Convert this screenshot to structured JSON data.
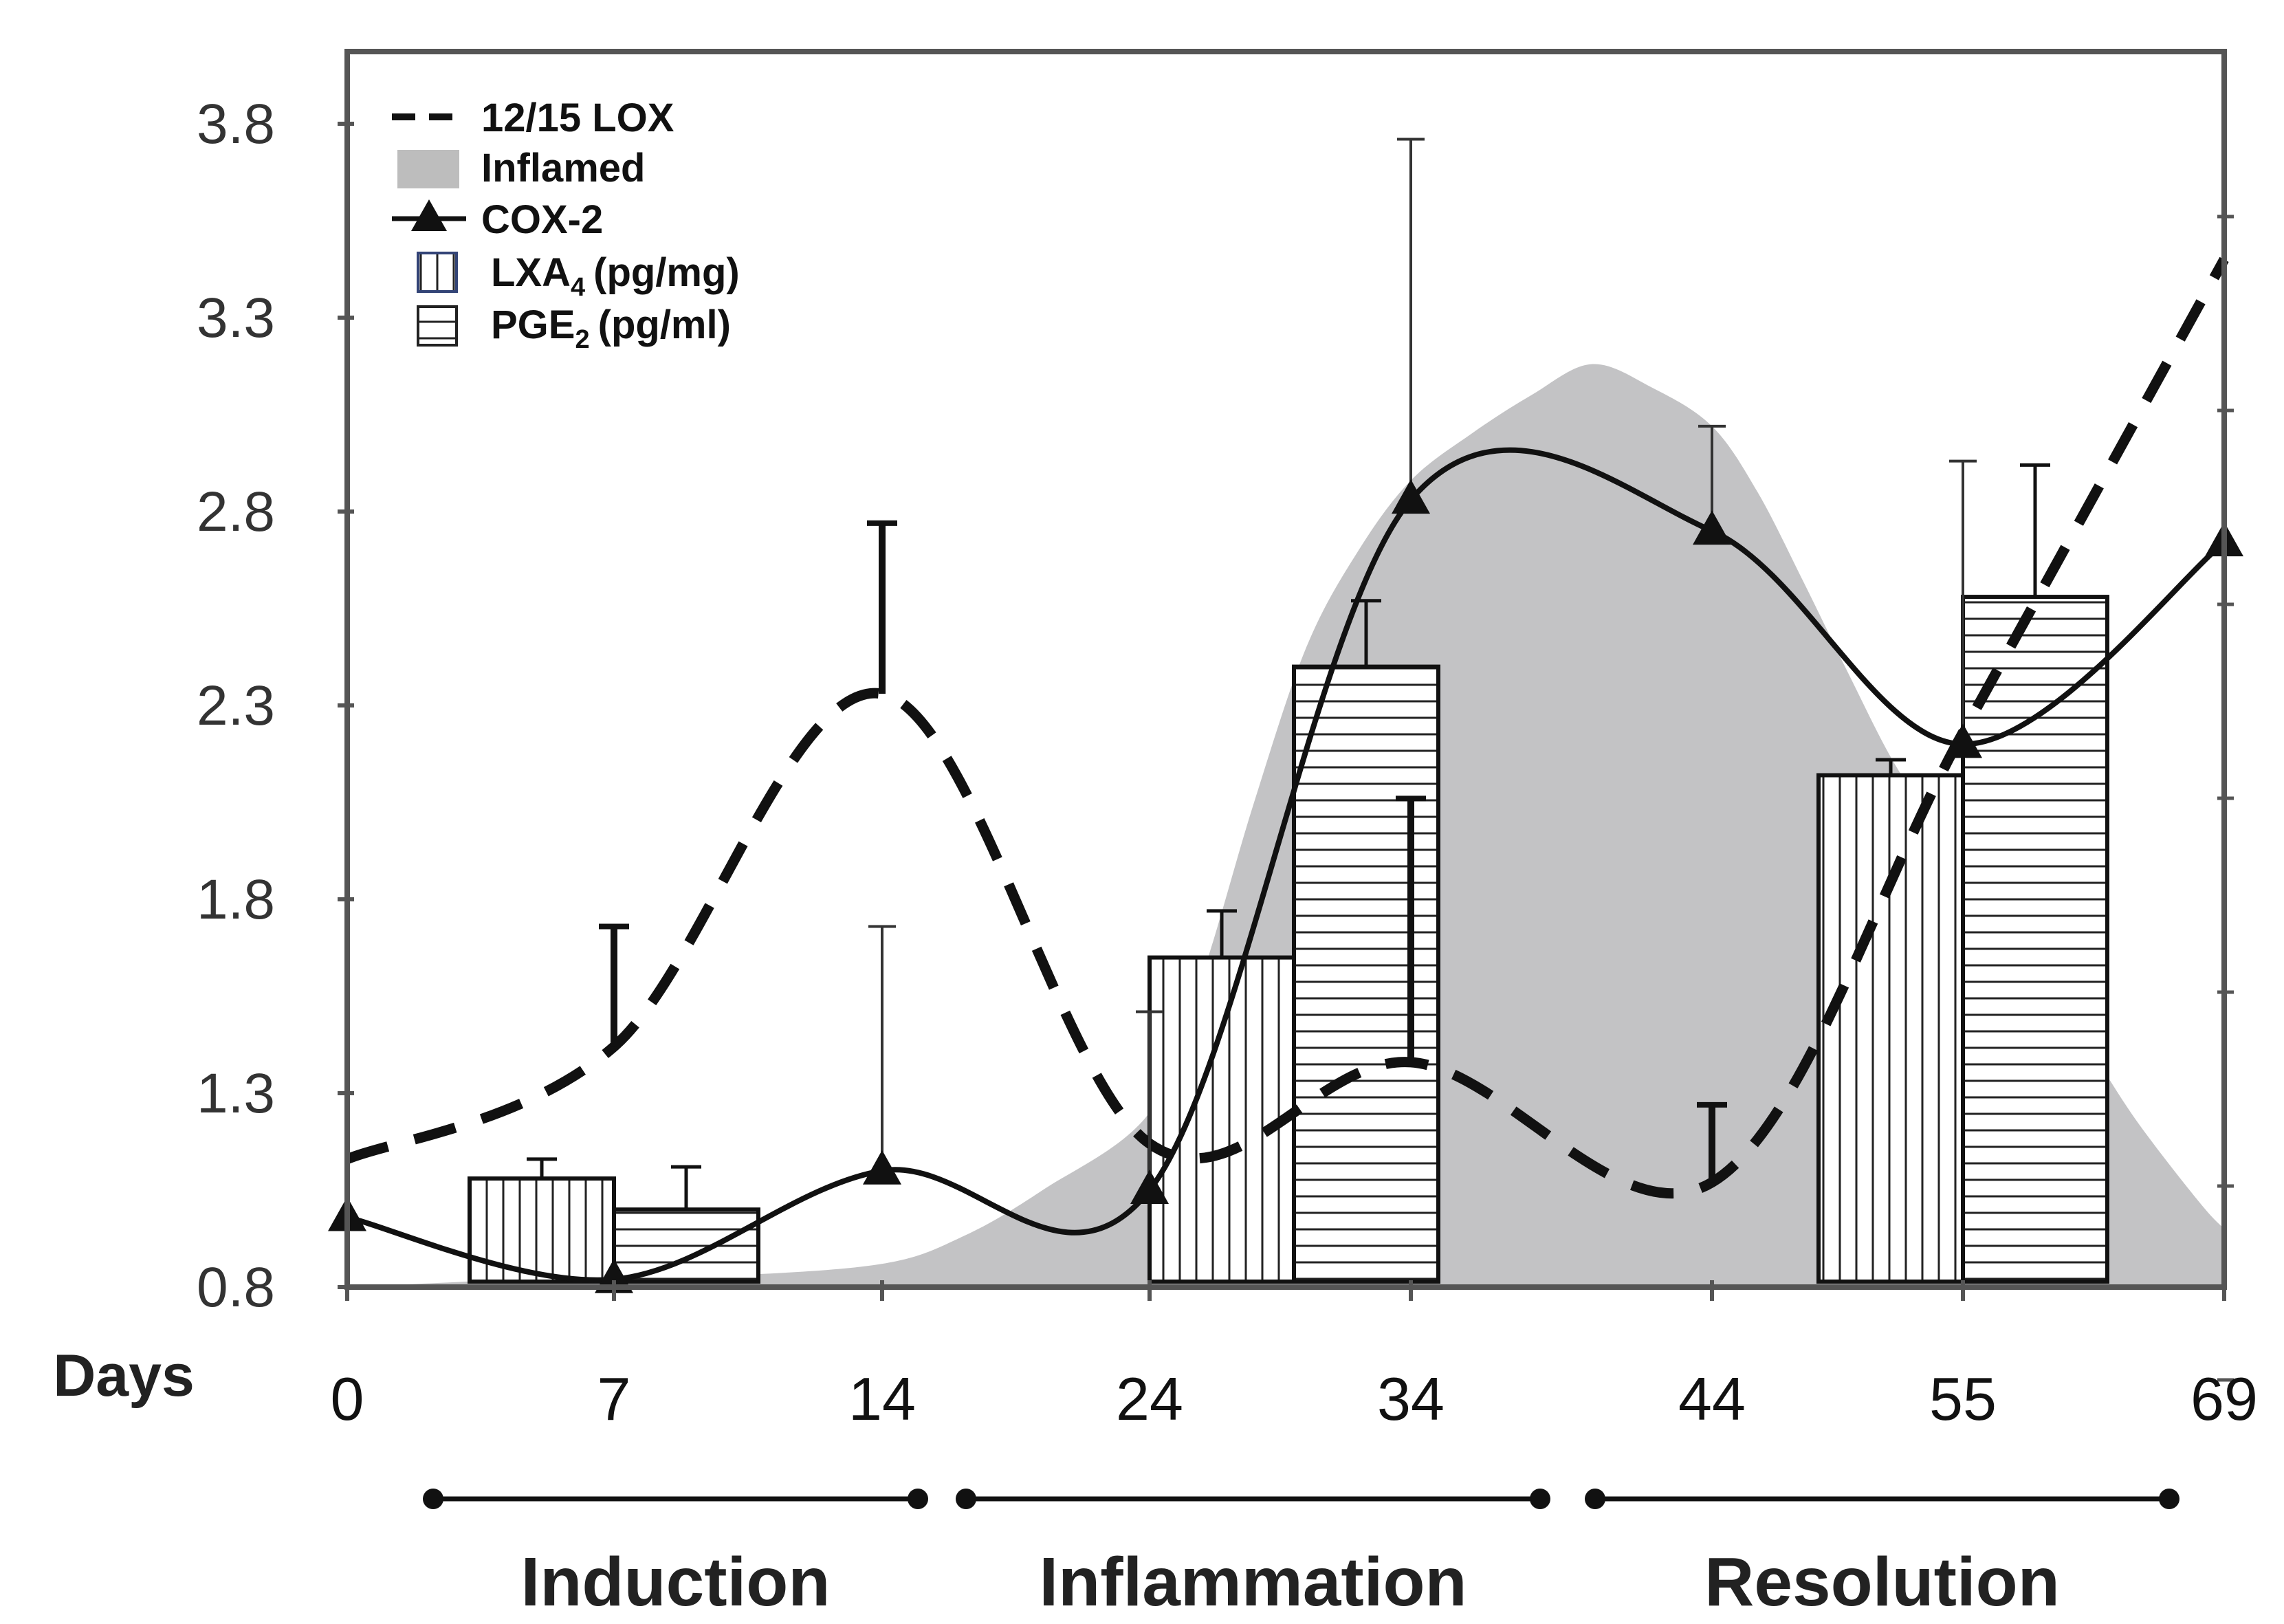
{
  "chart_data": {
    "type": "bar",
    "title": "",
    "xlabel": "Days",
    "ylabel": "",
    "x_ticks": [
      0,
      7,
      14,
      24,
      34,
      44,
      55,
      69
    ],
    "x_tick_labels": [
      "0",
      "7",
      "14",
      "24",
      "34",
      "44",
      "55",
      "69"
    ],
    "y_ticks": [
      0.8,
      1.3,
      1.8,
      2.3,
      2.8,
      3.3,
      3.8
    ],
    "y_tick_labels": [
      "0.8",
      "1.3",
      "1.8",
      "2.3",
      "2.8",
      "3.3",
      "3.8"
    ],
    "ylim": [
      0.8,
      3.98
    ],
    "series": [
      {
        "name": "12/15 LOX",
        "kind": "dashed-line",
        "x": [
          0,
          7,
          14,
          24,
          34,
          44,
          55,
          69
        ],
        "values": [
          1.13,
          1.42,
          2.33,
          1.17,
          1.38,
          1.07,
          2.23,
          3.45
        ],
        "error_upper": [
          null,
          1.73,
          2.77,
          null,
          2.06,
          1.27,
          null,
          null
        ],
        "smooth": true
      },
      {
        "name": "Inflamed",
        "kind": "area",
        "x": [
          0,
          7,
          10,
          14,
          17,
          20,
          24,
          26,
          28,
          30,
          32,
          34,
          36,
          38,
          40,
          42,
          44,
          46,
          48,
          50,
          52,
          54,
          56,
          58,
          60,
          62,
          64,
          66,
          68,
          69
        ],
        "values": [
          0.8,
          0.83,
          0.83,
          0.86,
          0.93,
          1.05,
          1.25,
          1.6,
          2.05,
          2.45,
          2.7,
          2.88,
          3.0,
          3.1,
          3.18,
          3.12,
          3.02,
          2.85,
          2.62,
          2.38,
          2.15,
          1.98,
          1.85,
          1.7,
          1.55,
          1.4,
          1.25,
          1.12,
          1.0,
          0.95
        ]
      },
      {
        "name": "COX-2",
        "kind": "line-triangle",
        "x": [
          0,
          7,
          14,
          24,
          34,
          44,
          55,
          69
        ],
        "values": [
          0.98,
          0.82,
          1.1,
          1.05,
          2.83,
          2.75,
          2.2,
          2.72
        ],
        "error_upper": [
          null,
          null,
          1.73,
          1.51,
          3.76,
          3.02,
          2.93,
          null
        ]
      },
      {
        "name": "LXA4 (pg/mg)",
        "kind": "bar-vertical-hatch",
        "x": [
          7,
          24,
          55
        ],
        "values": [
          1.08,
          1.65,
          2.12
        ],
        "error_upper": [
          1.13,
          1.77,
          2.16
        ]
      },
      {
        "name": "PGE2 (pg/ml)",
        "kind": "bar-horizontal-hatch",
        "x": [
          7,
          34,
          55
        ],
        "values": [
          1.0,
          2.4,
          2.58
        ],
        "error_upper": [
          1.11,
          2.57,
          2.92
        ]
      }
    ],
    "legend": {
      "position": "top-left",
      "items": [
        {
          "label": "12/15 LOX"
        },
        {
          "label": "Inflamed"
        },
        {
          "label": "COX-2"
        },
        {
          "base": "LXA",
          "sub": "4",
          "unit": "(pg/mg)"
        },
        {
          "base": "PGE",
          "sub": "2",
          "unit": "(pg/ml)"
        }
      ]
    },
    "phases": [
      {
        "label": "Induction",
        "from_day": 0,
        "to_day": 14
      },
      {
        "label": "Inflammation",
        "from_day": 14,
        "to_day": 44
      },
      {
        "label": "Resolution",
        "from_day": 44,
        "to_day": 69
      }
    ]
  }
}
